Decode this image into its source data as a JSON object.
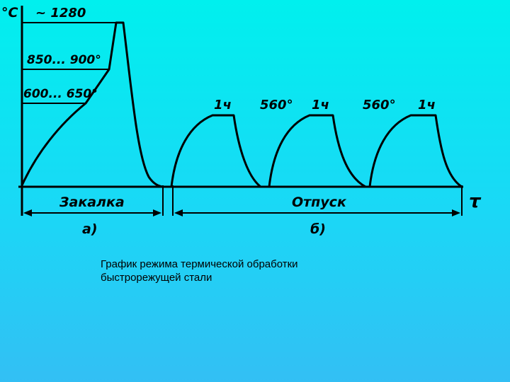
{
  "diagram": {
    "y_axis_unit": "°C",
    "x_axis_symbol": "τ",
    "temp_labels": {
      "peak": "~ 1280",
      "second_preheat": "850... 900°",
      "first_preheat": "600... 650°"
    },
    "tempering_labels": [
      {
        "hold": "1ч",
        "temp": "560°"
      },
      {
        "hold": "1ч",
        "temp": "560°"
      },
      {
        "hold": "1ч"
      }
    ],
    "stages": {
      "quench": {
        "label": "Закалка",
        "letter": "а)"
      },
      "temper": {
        "label": "Отпуск",
        "letter": "б)"
      }
    }
  },
  "caption": {
    "line1": "График режима термической обработки",
    "line2": "быстрорежущей стали"
  }
}
